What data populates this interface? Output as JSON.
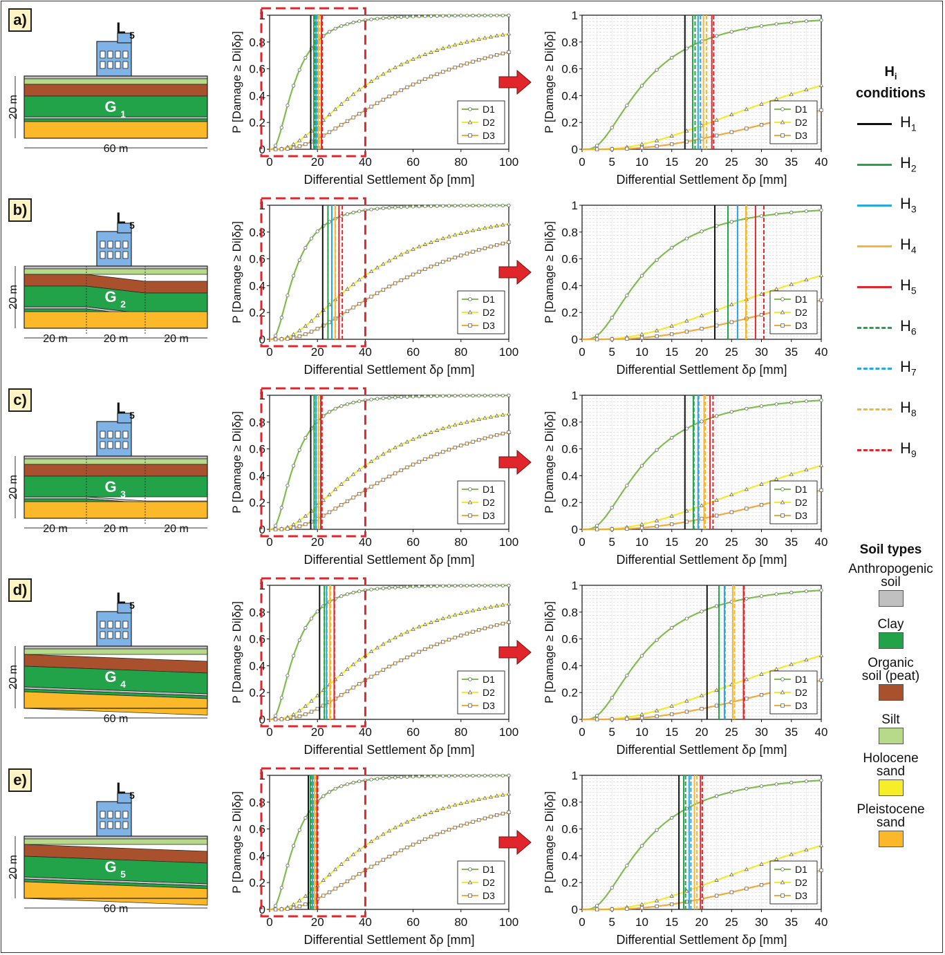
{
  "figure": {
    "panels": [
      {
        "label": "a)",
        "building": "L",
        "building_sub": "5",
        "ground": "G",
        "ground_sub": "1",
        "height_label": "20 m",
        "widths": [
          "60 m"
        ],
        "ground_type": "flat"
      },
      {
        "label": "b)",
        "building": "L",
        "building_sub": "5",
        "ground": "G",
        "ground_sub": "2",
        "height_label": "20 m",
        "widths": [
          "20 m",
          "20 m",
          "20 m"
        ],
        "ground_type": "step"
      },
      {
        "label": "c)",
        "building": "L",
        "building_sub": "5",
        "ground": "G",
        "ground_sub": "3",
        "height_label": "20 m",
        "widths": [
          "20 m",
          "20 m",
          "20 m"
        ],
        "ground_type": "step2"
      },
      {
        "label": "d)",
        "building": "L",
        "building_sub": "5",
        "ground": "G",
        "ground_sub": "4",
        "height_label": "20 m",
        "widths": [
          "60 m"
        ],
        "ground_type": "tilt"
      },
      {
        "label": "e)",
        "building": "L",
        "building_sub": "5",
        "ground": "G",
        "ground_sub": "5",
        "height_label": "20 m",
        "widths": [
          "60 m"
        ],
        "ground_type": "tilt2"
      }
    ],
    "arrow_label": "zoom-arrow"
  },
  "chart_data": [
    {
      "type": "line",
      "panel": "a",
      "role": "full",
      "xlabel": "Differential Settlement δρ [mm]",
      "ylabel": "P [Damage ≥ Di|δρ]",
      "xlim": [
        0,
        100
      ],
      "ylim": [
        0,
        1
      ],
      "xticks": [
        0,
        20,
        40,
        60,
        80,
        100
      ],
      "yticks": [
        0,
        0.2,
        0.4,
        0.6,
        0.8,
        1
      ],
      "series": [
        {
          "name": "D1",
          "median": 10.5,
          "beta": 0.75
        },
        {
          "name": "D2",
          "median": 42,
          "beta": 0.8
        },
        {
          "name": "D3",
          "median": 62,
          "beta": 0.8
        }
      ],
      "vlines": [
        17.2,
        18.5,
        19.4,
        20.3,
        21.7,
        18.9,
        19.8,
        20.8,
        22.0
      ],
      "zoom_box": [
        0,
        40
      ]
    },
    {
      "type": "line",
      "panel": "a",
      "role": "zoom",
      "xlabel": "Differential Settlement δρ [mm]",
      "ylabel": "P [Damage ≥ Di|δρ]",
      "xlim": [
        0,
        40
      ],
      "ylim": [
        0,
        1
      ],
      "xticks": [
        0,
        5,
        10,
        15,
        20,
        25,
        30,
        35,
        40
      ],
      "yticks": [
        0,
        0.2,
        0.4,
        0.6,
        0.8,
        1
      ],
      "series": [
        {
          "name": "D1",
          "median": 10.5,
          "beta": 0.75
        },
        {
          "name": "D2",
          "median": 42,
          "beta": 0.8
        },
        {
          "name": "D3",
          "median": 62,
          "beta": 0.8
        }
      ],
      "vlines": [
        17.2,
        18.5,
        19.4,
        20.3,
        21.7,
        18.9,
        19.8,
        20.8,
        22.0
      ]
    },
    {
      "type": "line",
      "panel": "b",
      "role": "full",
      "xlabel": "Differential Settlement δρ [mm]",
      "ylabel": "P [Damage ≥ Di|δρ]",
      "xlim": [
        0,
        100
      ],
      "ylim": [
        0,
        1
      ],
      "xticks": [
        0,
        20,
        40,
        60,
        80,
        100
      ],
      "yticks": [
        0,
        0.2,
        0.4,
        0.6,
        0.8,
        1
      ],
      "series": [
        {
          "name": "D1",
          "median": 10.5,
          "beta": 0.75
        },
        {
          "name": "D2",
          "median": 42,
          "beta": 0.8
        },
        {
          "name": "D3",
          "median": 62,
          "beta": 0.8
        }
      ],
      "vlines": [
        22.2,
        24.4,
        26.0,
        27.4,
        29.0,
        24.4,
        26.0,
        27.5,
        30.4
      ],
      "zoom_box": [
        0,
        40
      ]
    },
    {
      "type": "line",
      "panel": "b",
      "role": "zoom",
      "xlabel": "Differential Settlement δρ [mm]",
      "ylabel": "P [Damage ≥ Di|δρ]",
      "xlim": [
        0,
        40
      ],
      "ylim": [
        0,
        1
      ],
      "xticks": [
        0,
        5,
        10,
        15,
        20,
        25,
        30,
        35,
        40
      ],
      "yticks": [
        0,
        0.2,
        0.4,
        0.6,
        0.8,
        1
      ],
      "series": [
        {
          "name": "D1",
          "median": 10.5,
          "beta": 0.75
        },
        {
          "name": "D2",
          "median": 42,
          "beta": 0.8
        },
        {
          "name": "D3",
          "median": 62,
          "beta": 0.8
        }
      ],
      "vlines": [
        22.2,
        24.4,
        26.0,
        27.4,
        29.0,
        24.4,
        26.0,
        27.5,
        30.4
      ]
    },
    {
      "type": "line",
      "panel": "c",
      "role": "full",
      "xlabel": "Differential Settlement δρ [mm]",
      "ylabel": "P [Damage ≥ Di|δρ]",
      "xlim": [
        0,
        100
      ],
      "ylim": [
        0,
        1
      ],
      "xticks": [
        0,
        20,
        40,
        60,
        80,
        100
      ],
      "yticks": [
        0,
        0.2,
        0.4,
        0.6,
        0.8,
        1
      ],
      "series": [
        {
          "name": "D1",
          "median": 10.5,
          "beta": 0.75
        },
        {
          "name": "D2",
          "median": 42,
          "beta": 0.8
        },
        {
          "name": "D3",
          "median": 62,
          "beta": 0.8
        }
      ],
      "vlines": [
        17.2,
        18.6,
        19.4,
        20.4,
        21.4,
        18.7,
        19.5,
        20.6,
        21.9
      ],
      "zoom_box": [
        0,
        40
      ]
    },
    {
      "type": "line",
      "panel": "c",
      "role": "zoom",
      "xlabel": "Differential Settlement δρ [mm]",
      "ylabel": "P [Damage ≥ Di|δρ]",
      "xlim": [
        0,
        40
      ],
      "ylim": [
        0,
        1
      ],
      "xticks": [
        0,
        5,
        10,
        15,
        20,
        25,
        30,
        35,
        40
      ],
      "yticks": [
        0,
        0.2,
        0.4,
        0.6,
        0.8,
        1
      ],
      "series": [
        {
          "name": "D1",
          "median": 10.5,
          "beta": 0.75
        },
        {
          "name": "D2",
          "median": 42,
          "beta": 0.8
        },
        {
          "name": "D3",
          "median": 62,
          "beta": 0.8
        }
      ],
      "vlines": [
        17.2,
        18.6,
        19.4,
        20.4,
        21.4,
        18.7,
        19.5,
        20.6,
        21.9
      ]
    },
    {
      "type": "line",
      "panel": "d",
      "role": "full",
      "xlabel": "Differential Settlement δρ [mm]",
      "ylabel": "P [Damage ≥ Di|δρ]",
      "xlim": [
        0,
        100
      ],
      "ylim": [
        0,
        1
      ],
      "xticks": [
        0,
        20,
        40,
        60,
        80,
        100
      ],
      "yticks": [
        0,
        0.2,
        0.4,
        0.6,
        0.8,
        1
      ],
      "series": [
        {
          "name": "D1",
          "median": 10.5,
          "beta": 0.75
        },
        {
          "name": "D2",
          "median": 42,
          "beta": 0.8
        },
        {
          "name": "D3",
          "median": 62,
          "beta": 0.8
        }
      ],
      "vlines": [
        20.9,
        22.9,
        23.8,
        25.2,
        27.0,
        22.9,
        23.9,
        25.5,
        27.1
      ],
      "zoom_box": [
        0,
        40
      ]
    },
    {
      "type": "line",
      "panel": "d",
      "role": "zoom",
      "xlabel": "Differential Settlement δρ [mm]",
      "ylabel": "P [Damage ≥ Di|δρ]",
      "xlim": [
        0,
        40
      ],
      "ylim": [
        0,
        1
      ],
      "xticks": [
        0,
        5,
        10,
        15,
        20,
        25,
        30,
        35,
        40
      ],
      "yticks": [
        0,
        0.2,
        0.4,
        0.6,
        0.8,
        1
      ],
      "series": [
        {
          "name": "D1",
          "median": 10.5,
          "beta": 0.75
        },
        {
          "name": "D2",
          "median": 42,
          "beta": 0.8
        },
        {
          "name": "D3",
          "median": 62,
          "beta": 0.8
        }
      ],
      "vlines": [
        20.9,
        22.9,
        23.8,
        25.2,
        27.0,
        22.9,
        23.9,
        25.5,
        27.1
      ]
    },
    {
      "type": "line",
      "panel": "e",
      "role": "full",
      "xlabel": "Differential Settlement δρ [mm]",
      "ylabel": "P [Damage ≥ Di|δρ]",
      "xlim": [
        0,
        100
      ],
      "ylim": [
        0,
        1
      ],
      "xticks": [
        0,
        20,
        40,
        60,
        80,
        100
      ],
      "yticks": [
        0,
        0.2,
        0.4,
        0.6,
        0.8,
        1
      ],
      "series": [
        {
          "name": "D1",
          "median": 10.5,
          "beta": 0.75
        },
        {
          "name": "D2",
          "median": 42,
          "beta": 0.8
        },
        {
          "name": "D3",
          "median": 62,
          "beta": 0.8
        }
      ],
      "vlines": [
        16.2,
        17.0,
        17.9,
        18.8,
        19.8,
        17.3,
        18.2,
        19.2,
        20.1
      ],
      "zoom_box": [
        0,
        40
      ]
    },
    {
      "type": "line",
      "panel": "e",
      "role": "zoom",
      "xlabel": "Differential Settlement δρ [mm]",
      "ylabel": "P [Damage ≥ Di|δρ]",
      "xlim": [
        0,
        40
      ],
      "ylim": [
        0,
        1
      ],
      "xticks": [
        0,
        5,
        10,
        15,
        20,
        25,
        30,
        35,
        40
      ],
      "yticks": [
        0,
        0.2,
        0.4,
        0.6,
        0.8,
        1
      ],
      "series": [
        {
          "name": "D1",
          "median": 10.5,
          "beta": 0.75
        },
        {
          "name": "D2",
          "median": 42,
          "beta": 0.8
        },
        {
          "name": "D3",
          "median": 62,
          "beta": 0.8
        }
      ],
      "vlines": [
        16.2,
        17.0,
        17.9,
        18.8,
        19.8,
        17.3,
        18.2,
        19.2,
        20.1
      ]
    }
  ],
  "colors": {
    "D1": "#7fbd4e",
    "D2": "#f5ea2a",
    "D3": "#f3a93a",
    "H": [
      "#111111",
      "#25a34a",
      "#27a8e0",
      "#f7b733",
      "#e0262b",
      "#25a34a",
      "#27a8e0",
      "#f7b733",
      "#e0262b"
    ],
    "zoom_box": "#e0262b",
    "arrow": "#e0262b",
    "soil": {
      "anthropogenic": "#c0c0c0",
      "clay": "#22a249",
      "peat": "#a9512c",
      "silt": "#b7d98a",
      "holocene": "#f7ee2a",
      "pleistocene": "#fbb828"
    }
  },
  "legend": {
    "h_title": "H",
    "h_title_sub": "i",
    "h_title2": "conditions",
    "h_items": [
      {
        "label": "H",
        "sub": "1",
        "dashed": false
      },
      {
        "label": "H",
        "sub": "2",
        "dashed": false
      },
      {
        "label": "H",
        "sub": "3",
        "dashed": false
      },
      {
        "label": "H",
        "sub": "4",
        "dashed": false
      },
      {
        "label": "H",
        "sub": "5",
        "dashed": false
      },
      {
        "label": "H",
        "sub": "6",
        "dashed": true
      },
      {
        "label": "H",
        "sub": "7",
        "dashed": true
      },
      {
        "label": "H",
        "sub": "8",
        "dashed": true
      },
      {
        "label": "H",
        "sub": "9",
        "dashed": true
      }
    ],
    "soil_title": "Soil types",
    "soil_items": [
      {
        "label": "Anthropogenic\nsoil",
        "key": "anthropogenic"
      },
      {
        "label": "Clay",
        "key": "clay"
      },
      {
        "label": "Organic\nsoil (peat)",
        "key": "peat"
      },
      {
        "label": "Silt",
        "key": "silt"
      },
      {
        "label": "Holocene\nsand",
        "key": "holocene"
      },
      {
        "label": "Pleistocene\nsand",
        "key": "pleistocene"
      }
    ]
  }
}
